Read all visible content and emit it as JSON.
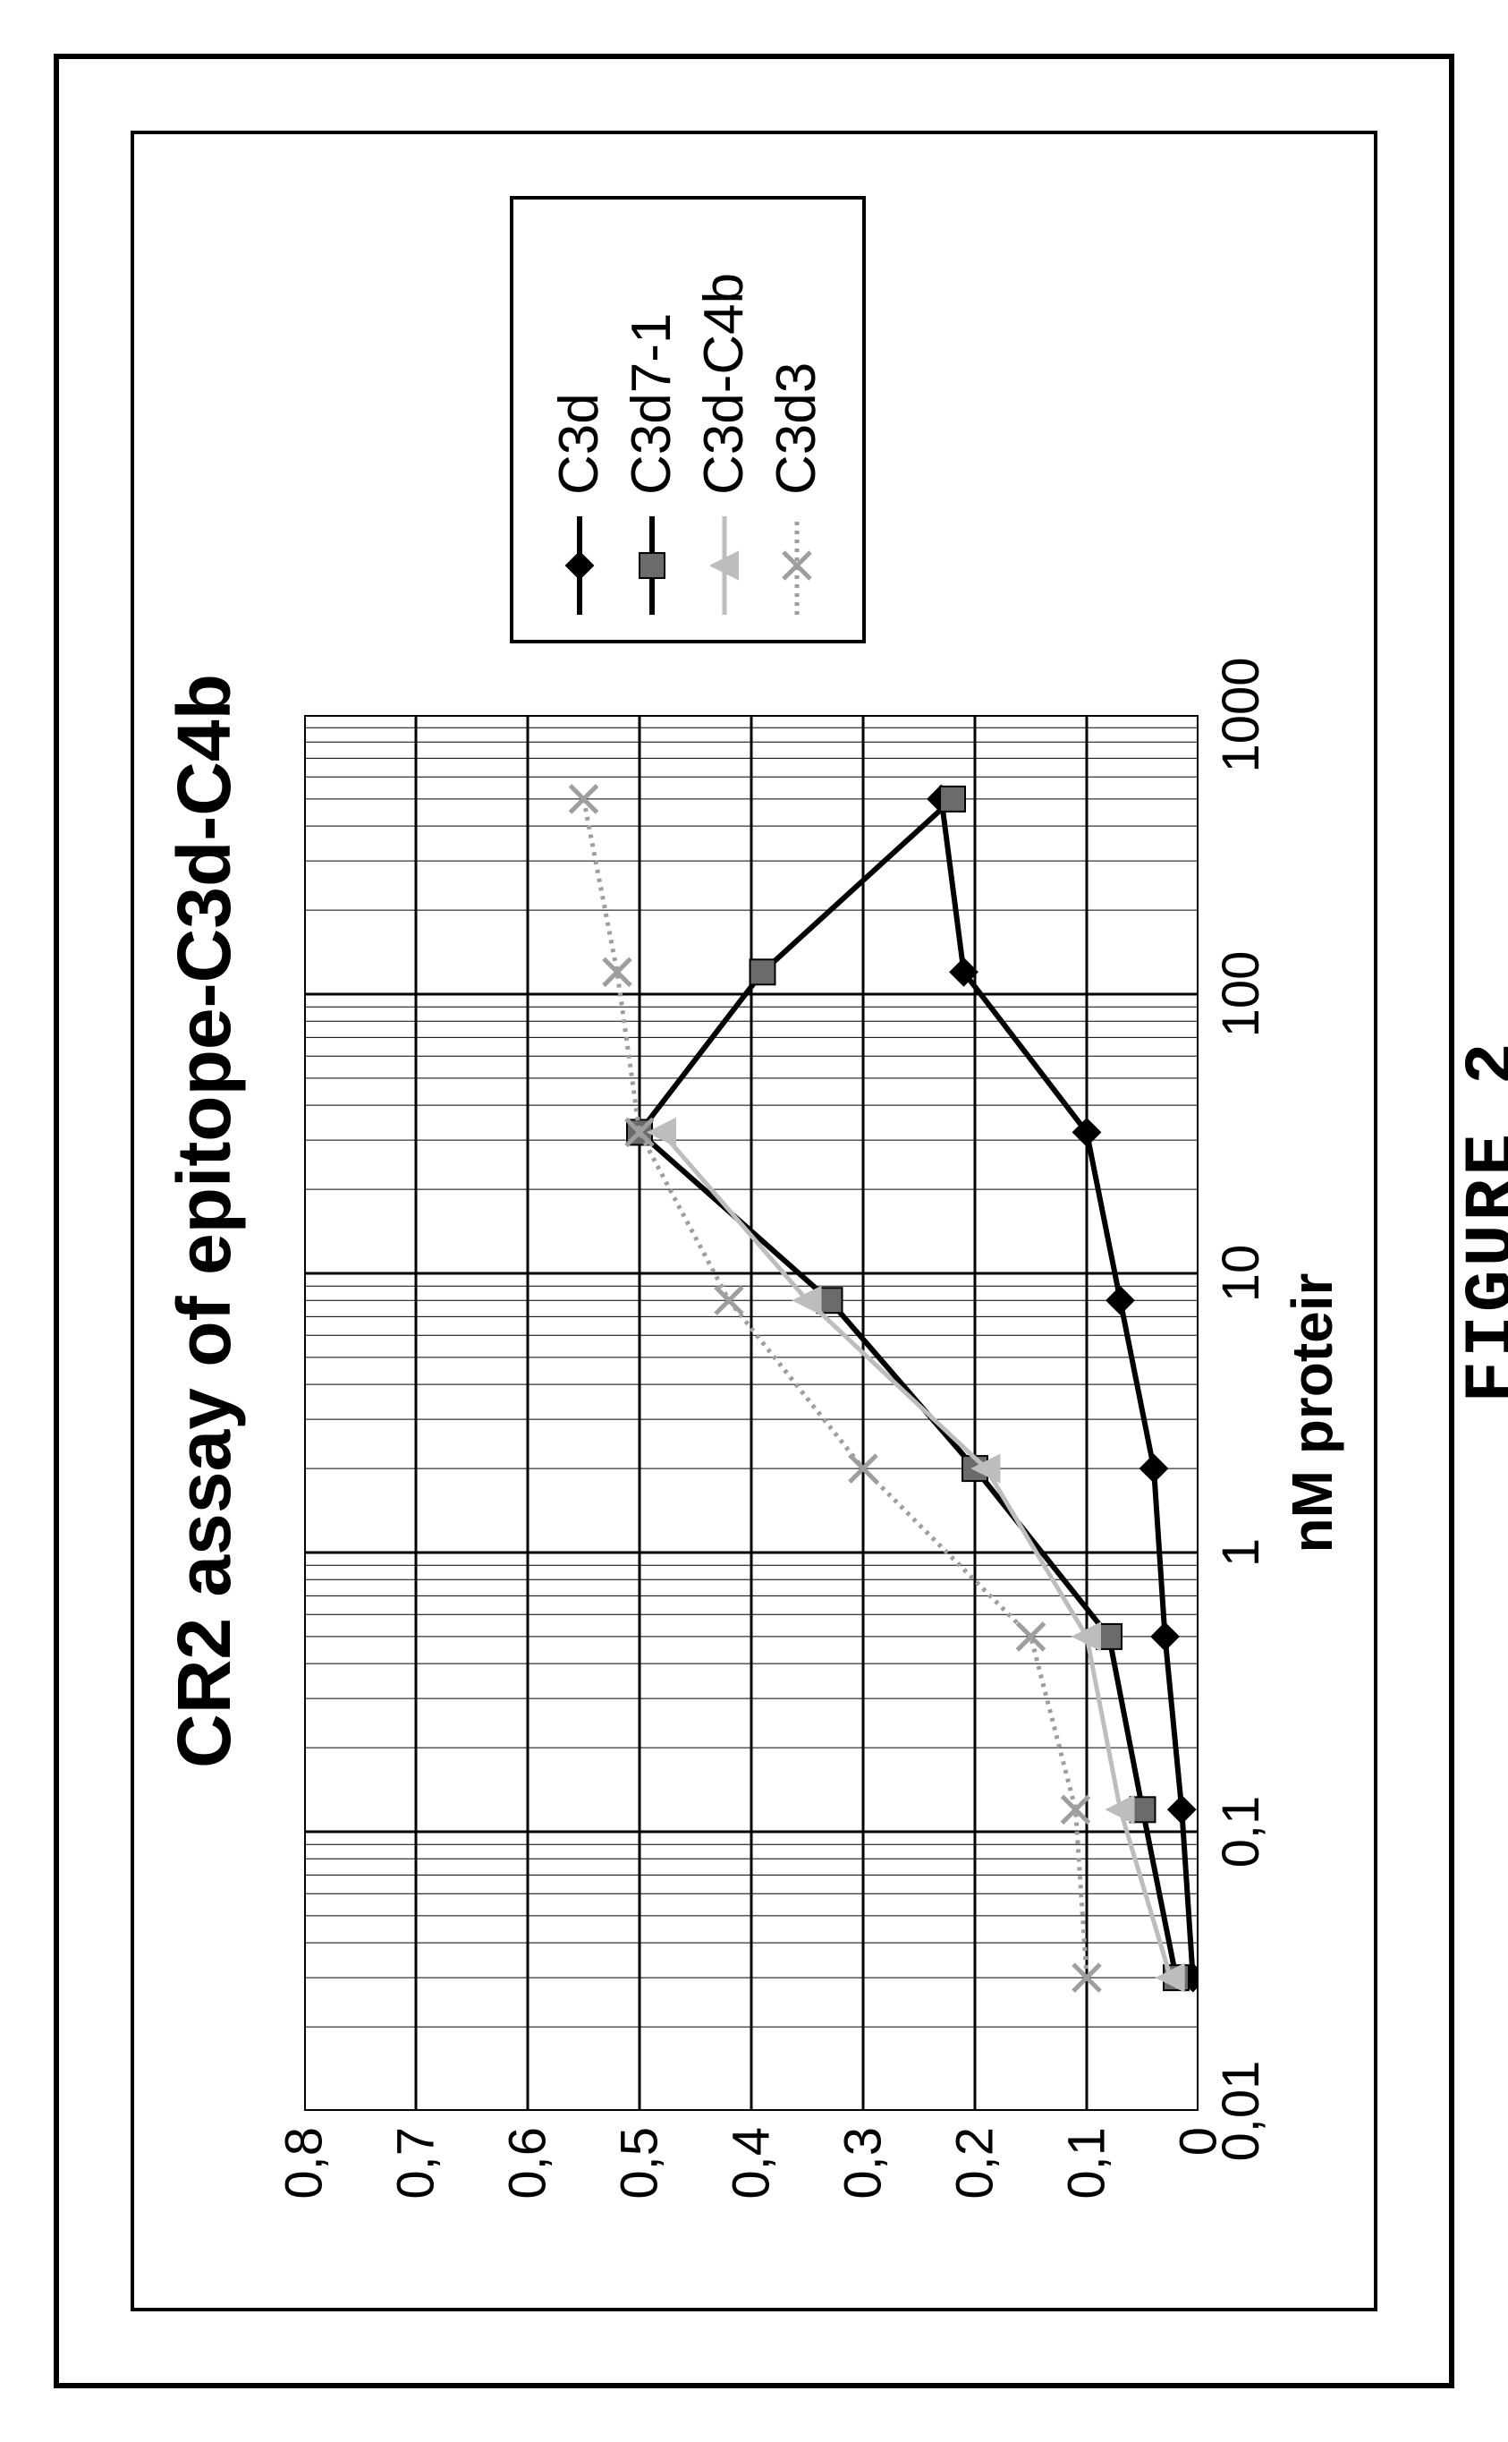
{
  "figure_caption": "FIGURE  2",
  "chart": {
    "type": "line",
    "title": "CR2 assay of epitope-C3d-C4b",
    "title_fontsize": 84,
    "background_color": "#ffffff",
    "border_color": "#000000",
    "grid_color_major": "#000000",
    "grid_color_minor": "#000000",
    "grid_major_width": 3,
    "grid_minor_width": 1,
    "x_axis": {
      "title": "nM proteir",
      "title_fontsize": 64,
      "scale": "log",
      "min": 0.01,
      "max": 1000,
      "ticks": [
        0.01,
        0.1,
        1,
        10,
        100,
        1000
      ],
      "tick_labels": [
        "0,01",
        "0,1",
        "1",
        "10",
        "100",
        "1000"
      ],
      "tick_fontsize": 58
    },
    "y_axis": {
      "scale": "linear",
      "min": 0,
      "max": 0.8,
      "ticks": [
        0,
        0.1,
        0.2,
        0.3,
        0.4,
        0.5,
        0.6,
        0.7,
        0.8
      ],
      "tick_labels": [
        "0",
        "0,1",
        "0,2",
        "0,3",
        "0,4",
        "0,5",
        "0,6",
        "0,7",
        "0,8"
      ],
      "tick_fontsize": 58
    },
    "legend": {
      "position": "right",
      "border_color": "#000000",
      "fontsize": 62
    },
    "series": [
      {
        "name": "C3d",
        "color": "#000000",
        "line_width": 6,
        "marker": "diamond",
        "marker_size": 30,
        "marker_fill": "#000000",
        "x": [
          0.03,
          0.12,
          0.5,
          2,
          8,
          32,
          120,
          500
        ],
        "y": [
          0.005,
          0.015,
          0.03,
          0.04,
          0.07,
          0.1,
          0.21,
          0.23
        ]
      },
      {
        "name": "C3d7-1",
        "color": "#000000",
        "line_width": 6,
        "marker": "square",
        "marker_size": 28,
        "marker_fill": "#6b6b6b",
        "x": [
          0.03,
          0.12,
          0.5,
          2,
          8,
          32,
          120,
          500
        ],
        "y": [
          0.02,
          0.05,
          0.08,
          0.2,
          0.33,
          0.5,
          0.39,
          0.22
        ]
      },
      {
        "name": "C3d-C4b",
        "color": "#bdbdbd",
        "line_width": 5,
        "marker": "triangle",
        "marker_size": 30,
        "marker_fill": "#bdbdbd",
        "x": [
          0.03,
          0.12,
          0.5,
          2,
          8,
          32
        ],
        "y": [
          0.025,
          0.07,
          0.1,
          0.19,
          0.35,
          0.48
        ]
      },
      {
        "name": "C3d3",
        "color": "#9e9e9e",
        "line_width": 5,
        "line_dash": "4,6",
        "marker": "x",
        "marker_size": 30,
        "marker_fill": "#6b6b6b",
        "x": [
          0.03,
          0.12,
          0.5,
          2,
          8,
          32,
          120,
          500
        ],
        "y": [
          0.1,
          0.11,
          0.15,
          0.3,
          0.42,
          0.5,
          0.52,
          0.55
        ]
      }
    ]
  }
}
